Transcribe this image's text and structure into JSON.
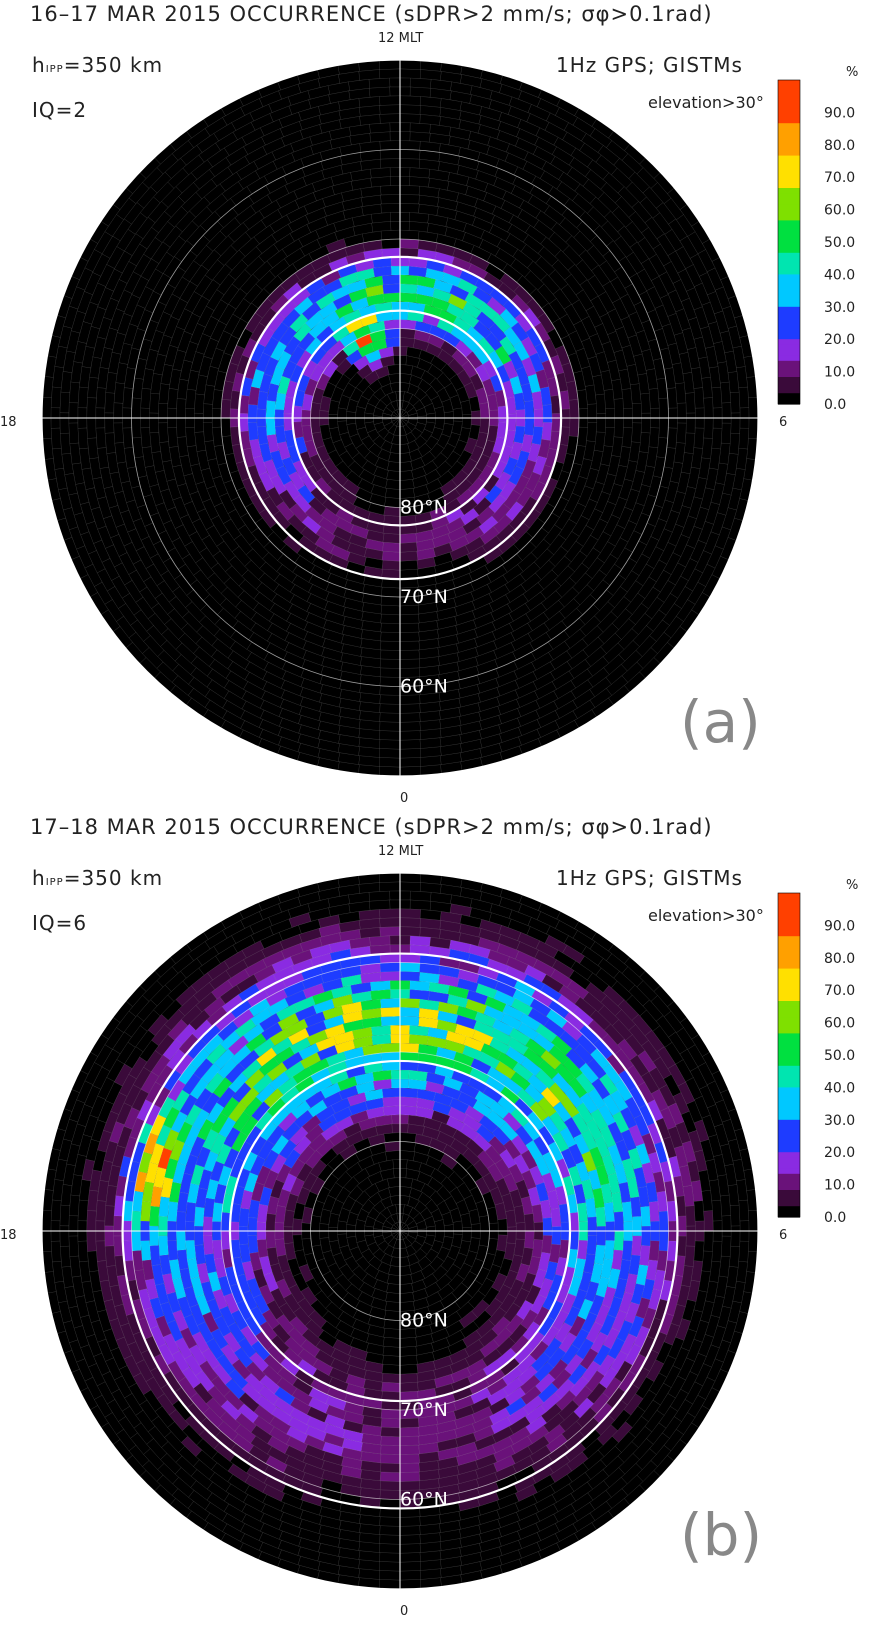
{
  "colorbar": {
    "unit": "%",
    "ticks": [
      "90.0",
      "80.0",
      "70.0",
      "60.0",
      "50.0",
      "40.0",
      "30.0",
      "20.0",
      "10.0",
      "0.0"
    ],
    "colors": [
      "#000000",
      "#3a0a3a",
      "#6a127a",
      "#8a2be2",
      "#1e3cff",
      "#00c8ff",
      "#00e5b0",
      "#00e040",
      "#7fe000",
      "#ffe000",
      "#ffa000",
      "#ff4000",
      "#ff0000"
    ]
  },
  "chart_data": [
    {
      "type": "heatmap",
      "projection": "polar (magnetic latitude vs MLT)",
      "title": "16–17 MAR 2015  OCCURRENCE (sDPR>2 mm/s; σφ>0.1rad)",
      "mlt_label_top": "12 MLT",
      "mlt_label_left": "18",
      "mlt_label_right": "6",
      "mlt_label_bottom": "0",
      "height": "h",
      "height_sub": "IPP",
      "height_val": "=350 km",
      "iq": "IQ=2",
      "source": "1Hz GPS; GISTMs",
      "elevation": "elevation>30°",
      "lat_labels": [
        "80°N",
        "70°N",
        "60°N"
      ],
      "panel_label": "(a)",
      "colorbar_range": [
        0,
        100
      ],
      "pattern": {
        "peak_occurrence_pct": 80,
        "description": "auroral oval ring near 75-82 MLat, strongest on dayside",
        "ring_center_lat": 76,
        "ring_width": 4,
        "ring_peak_pct": 45,
        "hotspot": {
          "mlt": 13.5,
          "lat": 80,
          "pct": 80
        }
      }
    },
    {
      "type": "heatmap",
      "projection": "polar (magnetic latitude vs MLT)",
      "title": "17–18 MAR 2015  OCCURRENCE (sDPR>2 mm/s; σφ>0.1rad)",
      "mlt_label_top": "12 MLT",
      "mlt_label_left": "18",
      "mlt_label_right": "6",
      "mlt_label_bottom": "0",
      "height": "h",
      "height_sub": "IPP",
      "height_val": "=350 km",
      "iq": "IQ=6",
      "source": "1Hz GPS; GISTMs",
      "elevation": "elevation>30°",
      "lat_labels": [
        "80°N",
        "70°N",
        "60°N"
      ],
      "panel_label": "(b)",
      "colorbar_range": [
        0,
        100
      ],
      "pattern": {
        "peak_occurrence_pct": 90,
        "description": "expanded oval extending to ~58 MLat, strong on dusk side",
        "ring_center_lat": 67,
        "ring_width": 8,
        "ring_peak_pct": 55,
        "hotspot": {
          "mlt": 17.0,
          "lat": 62,
          "pct": 90
        }
      }
    }
  ]
}
